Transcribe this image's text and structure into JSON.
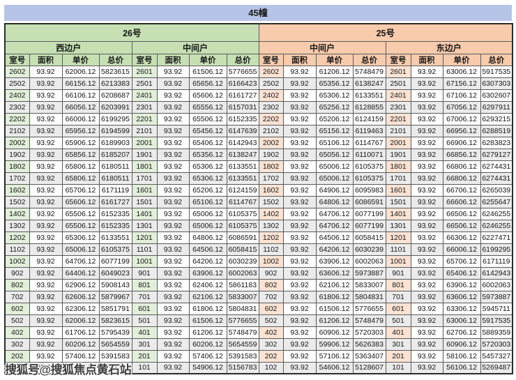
{
  "title": "45幢",
  "watermark": "搜狐号@搜狐焦点黄石站",
  "colors": {
    "title_bg": "#b7c4e7",
    "green_header": "#c6e0b4",
    "green_room": "#e2efda",
    "orange_header": "#f8cbad",
    "orange_room": "#fbe3d4",
    "row_alt": "#ebebeb"
  },
  "columns": [
    "室号",
    "面积",
    "单价",
    "总价"
  ],
  "buildings": [
    {
      "name": "26号",
      "theme": "green",
      "units": [
        "西边户",
        "中间户"
      ]
    },
    {
      "name": "25号",
      "theme": "orange",
      "units": [
        "中间户",
        "东边户"
      ]
    }
  ],
  "rows": [
    [
      [
        "2602",
        "93.92",
        "62006.12",
        "5823615"
      ],
      [
        "2601",
        "93.92",
        "61506.12",
        "5776655"
      ],
      [
        "2602",
        "93.92",
        "61206.12",
        "5748479"
      ],
      [
        "2601",
        "93.92",
        "63006.12",
        "5917535"
      ]
    ],
    [
      [
        "2502",
        "93.92",
        "66156.12",
        "6213383"
      ],
      [
        "2501",
        "93.92",
        "65656.12",
        "6166423"
      ],
      [
        "2502",
        "93.92",
        "65356.12",
        "6138247"
      ],
      [
        "2501",
        "93.92",
        "67156.12",
        "6307303"
      ]
    ],
    [
      [
        "2402",
        "93.92",
        "66106.12",
        "6208687"
      ],
      [
        "2401",
        "93.92",
        "65606.12",
        "6161727"
      ],
      [
        "2402",
        "93.92",
        "65306.12",
        "6133551"
      ],
      [
        "2401",
        "93.92",
        "67106.12",
        "6302607"
      ]
    ],
    [
      [
        "2302",
        "93.92",
        "66056.12",
        "6203991"
      ],
      [
        "2301",
        "93.92",
        "65556.12",
        "6157031"
      ],
      [
        "2302",
        "93.92",
        "65256.12",
        "6128855"
      ],
      [
        "2301",
        "93.92",
        "67056.12",
        "6297911"
      ]
    ],
    [
      [
        "2202",
        "93.92",
        "66006.12",
        "6199295"
      ],
      [
        "2201",
        "93.92",
        "65506.12",
        "6152335"
      ],
      [
        "2202",
        "93.92",
        "65206.12",
        "6124159"
      ],
      [
        "2201",
        "93.92",
        "67006.12",
        "6293215"
      ]
    ],
    [
      [
        "2102",
        "93.92",
        "65956.12",
        "6194599"
      ],
      [
        "2101",
        "93.92",
        "65456.12",
        "6147639"
      ],
      [
        "2102",
        "93.92",
        "65156.12",
        "6119463"
      ],
      [
        "2101",
        "93.92",
        "66956.12",
        "6288519"
      ]
    ],
    [
      [
        "2002",
        "93.92",
        "65906.12",
        "6189903"
      ],
      [
        "2001",
        "93.92",
        "65406.12",
        "6142943"
      ],
      [
        "2002",
        "93.92",
        "65106.12",
        "6114767"
      ],
      [
        "2001",
        "93.92",
        "66906.12",
        "6283823"
      ]
    ],
    [
      [
        "1902",
        "93.92",
        "65856.12",
        "6185207"
      ],
      [
        "1901",
        "93.92",
        "65356.12",
        "6138247"
      ],
      [
        "1902",
        "93.92",
        "65056.12",
        "6110071"
      ],
      [
        "1901",
        "93.92",
        "66856.12",
        "6279127"
      ]
    ],
    [
      [
        "1802",
        "93.92",
        "65806.12",
        "6180511"
      ],
      [
        "1801",
        "93.92",
        "65306.12",
        "6133551"
      ],
      [
        "1802",
        "93.92",
        "65006.12",
        "6105375"
      ],
      [
        "1801",
        "93.92",
        "66806.12",
        "6274431"
      ]
    ],
    [
      [
        "1702",
        "93.92",
        "65806.12",
        "6180511"
      ],
      [
        "1701",
        "93.92",
        "65306.12",
        "6133551"
      ],
      [
        "1702",
        "93.92",
        "65006.12",
        "6105375"
      ],
      [
        "1701",
        "93.92",
        "66806.12",
        "6274431"
      ]
    ],
    [
      [
        "1602",
        "93.92",
        "65706.12",
        "6171119"
      ],
      [
        "1601",
        "93.92",
        "65206.12",
        "6124159"
      ],
      [
        "1602",
        "93.92",
        "64906.12",
        "6095983"
      ],
      [
        "1601",
        "93.92",
        "66706.12",
        "6265039"
      ]
    ],
    [
      [
        "1502",
        "93.92",
        "65606.12",
        "6161727"
      ],
      [
        "1501",
        "93.92",
        "65106.12",
        "6114767"
      ],
      [
        "1502",
        "93.92",
        "64806.12",
        "6086591"
      ],
      [
        "1501",
        "93.92",
        "66606.12",
        "6255647"
      ]
    ],
    [
      [
        "1402",
        "93.92",
        "65506.12",
        "6152335"
      ],
      [
        "1401",
        "93.92",
        "65006.12",
        "6105375"
      ],
      [
        "1402",
        "93.92",
        "64706.12",
        "6077199"
      ],
      [
        "1401",
        "93.92",
        "66506.12",
        "6246255"
      ]
    ],
    [
      [
        "1302",
        "93.92",
        "65506.12",
        "6152335"
      ],
      [
        "1301",
        "93.92",
        "65006.12",
        "6105375"
      ],
      [
        "1302",
        "93.92",
        "64706.12",
        "6077199"
      ],
      [
        "1301",
        "93.92",
        "66506.12",
        "6246255"
      ]
    ],
    [
      [
        "1202",
        "93.92",
        "65306.12",
        "6133551"
      ],
      [
        "1201",
        "93.92",
        "64806.12",
        "6086591"
      ],
      [
        "1202",
        "93.92",
        "64506.12",
        "6058415"
      ],
      [
        "1201",
        "93.92",
        "66306.12",
        "6227471"
      ]
    ],
    [
      [
        "1102",
        "93.92",
        "65006.12",
        "6105375"
      ],
      [
        "1101",
        "93.92",
        "64506.12",
        "6058415"
      ],
      [
        "1102",
        "93.92",
        "64206.12",
        "6030239"
      ],
      [
        "1101",
        "93.92",
        "66006.12",
        "6199295"
      ]
    ],
    [
      [
        "1002",
        "93.92",
        "64706.12",
        "6077199"
      ],
      [
        "1001",
        "93.92",
        "64206.12",
        "6030239"
      ],
      [
        "1002",
        "93.92",
        "63906.12",
        "6002063"
      ],
      [
        "1001",
        "93.92",
        "65706.12",
        "6171119"
      ]
    ],
    [
      [
        "902",
        "93.92",
        "64406.12",
        "6049023"
      ],
      [
        "901",
        "93.92",
        "63906.12",
        "6002063"
      ],
      [
        "902",
        "93.92",
        "63606.12",
        "5973887"
      ],
      [
        "901",
        "93.92",
        "65406.12",
        "6142943"
      ]
    ],
    [
      [
        "802",
        "93.92",
        "62906.12",
        "5908143"
      ],
      [
        "801",
        "93.92",
        "62406.12",
        "5861183"
      ],
      [
        "802",
        "93.92",
        "62106.12",
        "5833007"
      ],
      [
        "801",
        "93.92",
        "63906.12",
        "6002063"
      ]
    ],
    [
      [
        "702",
        "93.92",
        "62606.12",
        "5879967"
      ],
      [
        "701",
        "93.92",
        "62106.12",
        "5833007"
      ],
      [
        "702",
        "93.92",
        "61806.12",
        "5804831"
      ],
      [
        "701",
        "93.92",
        "63606.12",
        "5973887"
      ]
    ],
    [
      [
        "602",
        "93.92",
        "62306.12",
        "5851791"
      ],
      [
        "601",
        "93.92",
        "61806.12",
        "5804831"
      ],
      [
        "602",
        "93.92",
        "61506.12",
        "5776655"
      ],
      [
        "601",
        "93.92",
        "63306.12",
        "5945711"
      ]
    ],
    [
      [
        "502",
        "93.92",
        "62006.12",
        "5823615"
      ],
      [
        "501",
        "93.92",
        "61506.12",
        "5776655"
      ],
      [
        "502",
        "93.92",
        "61206.12",
        "5748479"
      ],
      [
        "501",
        "93.92",
        "63006.12",
        "5917535"
      ]
    ],
    [
      [
        "402",
        "93.92",
        "61706.12",
        "5795439"
      ],
      [
        "401",
        "93.92",
        "61206.12",
        "5748479"
      ],
      [
        "402",
        "93.92",
        "60906.12",
        "5720303"
      ],
      [
        "401",
        "93.92",
        "62706.12",
        "5889359"
      ]
    ],
    [
      [
        "302",
        "93.92",
        "60206.12",
        "5654559"
      ],
      [
        "301",
        "93.92",
        "60206.12",
        "5654559"
      ],
      [
        "302",
        "93.92",
        "59906.12",
        "5626383"
      ],
      [
        "301",
        "93.92",
        "60906.12",
        "5720303"
      ]
    ],
    [
      [
        "202",
        "93.92",
        "57406.12",
        "5391583"
      ],
      [
        "201",
        "93.92",
        "57406.12",
        "5391583"
      ],
      [
        "202",
        "93.92",
        "57106.12",
        "5363407"
      ],
      [
        "201",
        "93.92",
        "58106.12",
        "5457327"
      ]
    ],
    [
      [
        "102",
        "93.92",
        "55406.12",
        "5203743"
      ],
      [
        "101",
        "93.92",
        "54906.12",
        "5156783"
      ],
      [
        "102",
        "93.92",
        "54606.12",
        "5128607"
      ],
      [
        "101",
        "93.92",
        "56106.12",
        "5269487"
      ]
    ]
  ]
}
